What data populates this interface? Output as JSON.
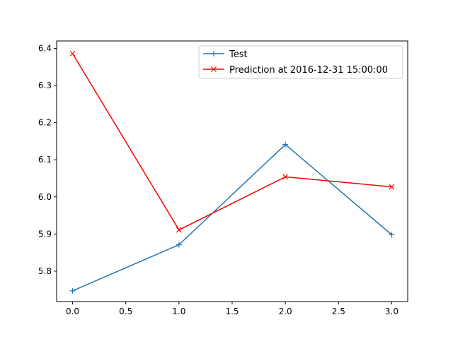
{
  "chart_data": {
    "type": "line",
    "title": "",
    "xlabel": "",
    "ylabel": "",
    "x": [
      0,
      1,
      2,
      3
    ],
    "xlim": [
      -0.15,
      3.15
    ],
    "ylim": [
      5.718,
      6.42
    ],
    "xticks": [
      0.0,
      0.5,
      1.0,
      1.5,
      2.0,
      2.5,
      3.0
    ],
    "xtick_labels": [
      "0.0",
      "0.5",
      "1.0",
      "1.5",
      "2.0",
      "2.5",
      "3.0"
    ],
    "yticks": [
      5.8,
      5.9,
      6.0,
      6.1,
      6.2,
      6.3,
      6.4
    ],
    "ytick_labels": [
      "5.8",
      "5.9",
      "6.0",
      "6.1",
      "6.2",
      "6.3",
      "6.4"
    ],
    "grid": false,
    "legend_position": "top-right",
    "series": [
      {
        "name": "Test",
        "values": [
          5.747,
          5.871,
          6.141,
          5.898
        ],
        "color": "#1f77b4",
        "marker": "plus"
      },
      {
        "name": "Prediction at 2016-12-31 15:00:00",
        "values": [
          6.386,
          5.911,
          6.054,
          6.027
        ],
        "color": "#ff0000",
        "marker": "x"
      }
    ]
  }
}
